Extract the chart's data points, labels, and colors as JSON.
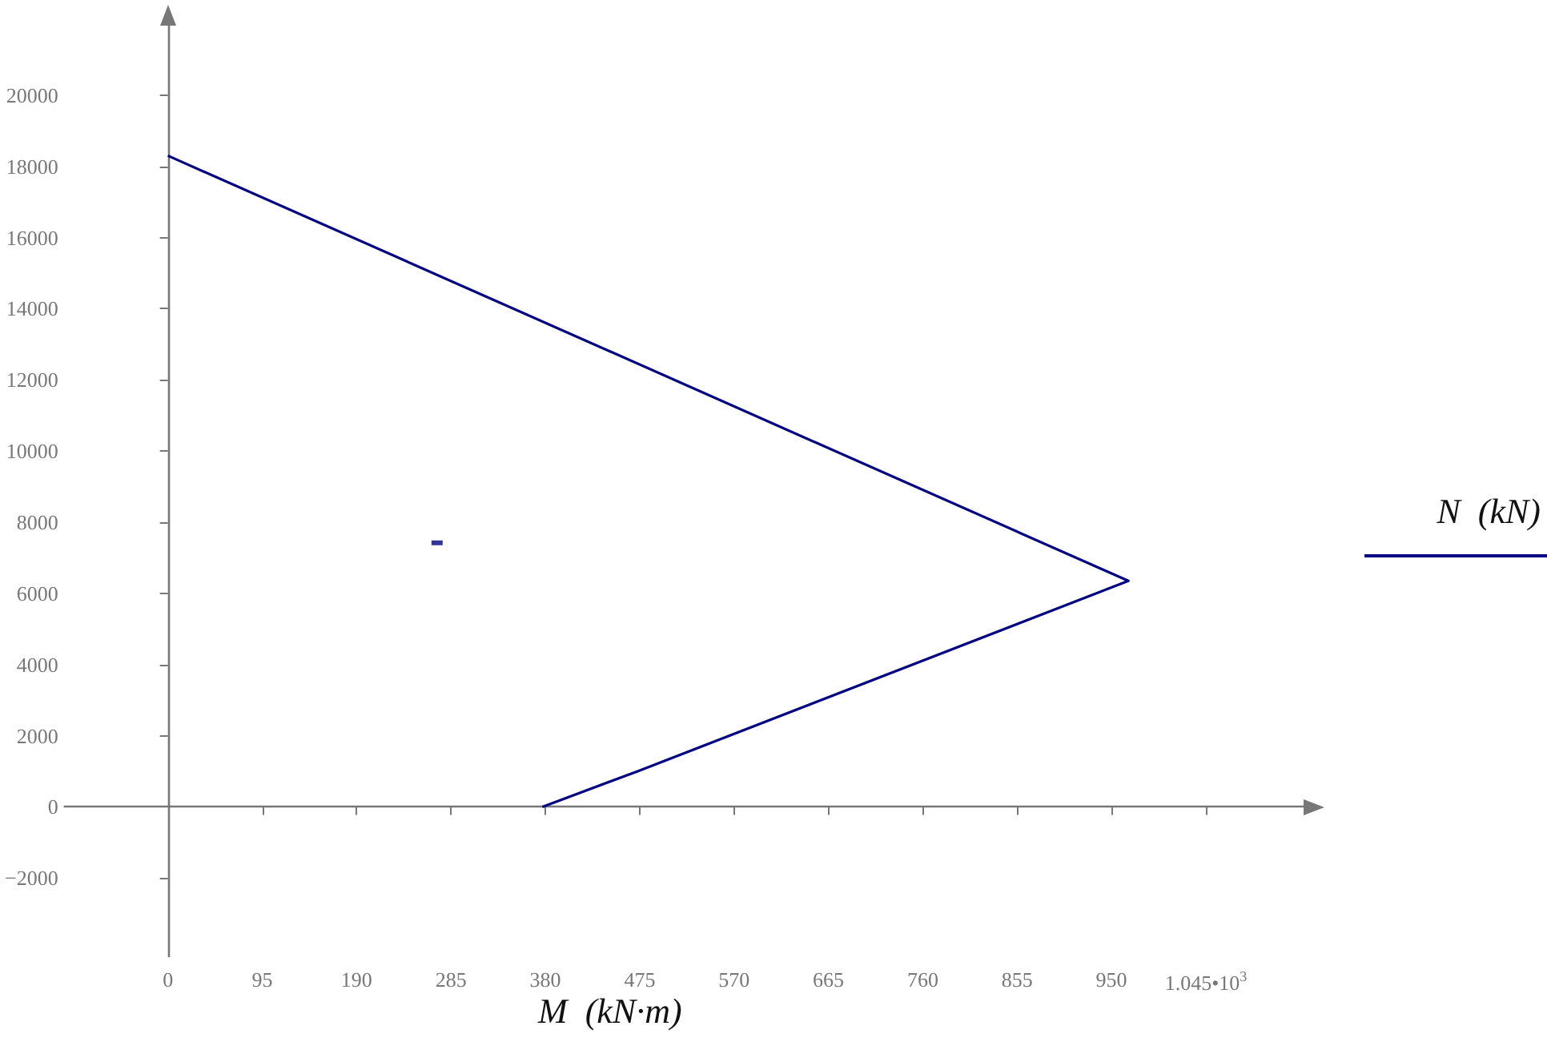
{
  "chart_data": {
    "type": "line",
    "xlabel": "M  (kN·m)",
    "ylabel": "N  (kN)",
    "series": [
      {
        "color": "#000080",
        "x": [
          0,
          967,
          473,
          377
        ],
        "values": [
          18300,
          6350,
          1000,
          0
        ]
      },
      {
        "type": "scatter",
        "marker": "square",
        "color": "#000080",
        "x": [
          271
        ],
        "values": [
          7420
        ]
      }
    ],
    "marker": "none",
    "xlim": [
      -104,
      1145
    ],
    "xticks": [
      0,
      95,
      190,
      285,
      380,
      475,
      570,
      665,
      760,
      855,
      950,
      {
        "value": 1045,
        "label": "1.045•10$^{3}$"
      }
    ],
    "ylim": [
      -4200,
      22000
    ],
    "yticks": [
      -2000,
      0,
      2000,
      4000,
      6000,
      8000,
      10000,
      12000,
      14000,
      16000,
      18000,
      20000
    ],
    "tick_labels": "xy"
  }
}
